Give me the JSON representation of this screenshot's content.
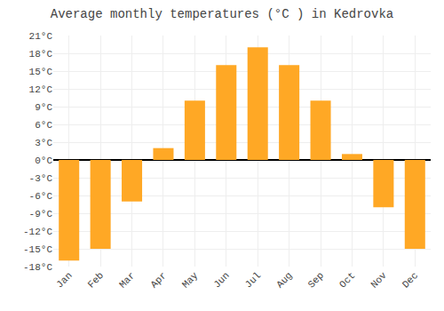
{
  "chart_data": {
    "type": "bar",
    "title": "Average monthly temperatures (°C ) in Kedrovka",
    "categories": [
      "Jan",
      "Feb",
      "Mar",
      "Apr",
      "May",
      "Jun",
      "Jul",
      "Aug",
      "Sep",
      "Oct",
      "Nov",
      "Dec"
    ],
    "values": [
      -17,
      -15,
      -7,
      2,
      10,
      16,
      19,
      16,
      10,
      1,
      -8,
      -15
    ],
    "color": "#FFA825",
    "ylim": [
      -18,
      21
    ],
    "yticks": [
      {
        "value": -18,
        "label": "-18°C"
      },
      {
        "value": -15,
        "label": "-15°C"
      },
      {
        "value": -12,
        "label": "-12°C"
      },
      {
        "value": -9,
        "label": "-9°C"
      },
      {
        "value": -6,
        "label": "-6°C"
      },
      {
        "value": -3,
        "label": "-3°C"
      },
      {
        "value": 0,
        "label": "0°C"
      },
      {
        "value": 3,
        "label": "3°C"
      },
      {
        "value": 6,
        "label": "6°C"
      },
      {
        "value": 9,
        "label": "9°C"
      },
      {
        "value": 12,
        "label": "12°C"
      },
      {
        "value": 15,
        "label": "15°C"
      },
      {
        "value": 18,
        "label": "18°C"
      },
      {
        "value": 21,
        "label": "21°C"
      }
    ],
    "grid": true
  }
}
